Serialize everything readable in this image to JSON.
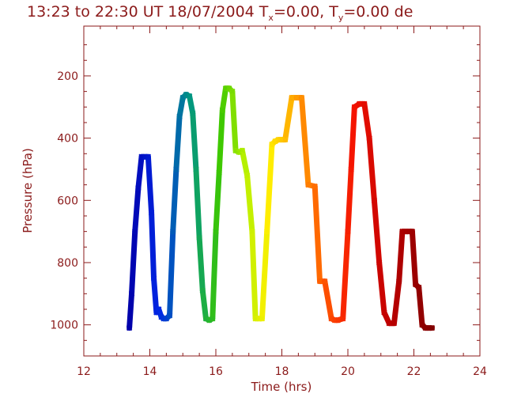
{
  "chart_data": {
    "type": "line",
    "title": "13:23 to 22:30 UT 18/07/2004   T",
    "title_tx_sub": "x",
    "title_mid": "=0.00, T",
    "title_ty_sub": "y",
    "title_end": "=0.00 de",
    "xlabel": "Time  (hrs)",
    "ylabel": "Pressure  (hPa)",
    "xlim": [
      12,
      24
    ],
    "ylim": [
      1100,
      40
    ],
    "y_inverted": true,
    "grid": false,
    "x_ticks": [
      12,
      14,
      16,
      18,
      20,
      22,
      24
    ],
    "x_tick_labels": [
      "12",
      "14",
      "16",
      "18",
      "20",
      "22",
      "24"
    ],
    "y_ticks": [
      200,
      400,
      600,
      800,
      1000
    ],
    "y_tick_labels": [
      "200",
      "400",
      "600",
      "800",
      "1000"
    ],
    "axis_color": "#8b1a1a",
    "colormap": "rainbow (blue → green → yellow → orange → red → dark red) along time",
    "marker": "x",
    "series": [
      {
        "x": [
          13.38,
          13.45,
          13.55,
          13.65,
          13.75,
          13.85,
          13.95,
          14.05,
          14.12,
          14.2,
          14.27,
          14.35,
          14.42,
          14.5,
          14.6,
          14.7,
          14.8,
          14.9,
          15.0,
          15.1,
          15.2,
          15.3,
          15.4,
          15.5,
          15.6,
          15.7,
          15.8,
          15.9,
          16.0,
          16.1,
          16.2,
          16.3,
          16.4,
          16.5,
          16.6,
          16.7,
          16.8,
          16.95,
          17.1,
          17.2,
          17.3,
          17.4,
          17.55,
          17.7,
          17.8,
          17.9,
          18.0,
          18.1,
          18.3,
          18.45,
          18.6,
          18.8,
          19.0,
          19.15,
          19.3,
          19.5,
          19.6,
          19.7,
          19.85,
          20.0,
          20.1,
          20.2,
          20.35,
          20.5,
          20.65,
          20.8,
          20.95,
          21.1,
          21.25,
          21.4,
          21.55,
          21.65,
          21.75,
          21.85,
          21.95,
          22.05,
          22.15,
          22.25,
          22.35,
          22.45,
          22.55
        ],
        "y": [
          1010,
          900,
          700,
          560,
          460,
          460,
          460,
          640,
          850,
          960,
          950,
          975,
          980,
          980,
          970,
          700,
          500,
          330,
          270,
          260,
          265,
          320,
          500,
          720,
          890,
          980,
          985,
          980,
          700,
          510,
          310,
          240,
          240,
          250,
          440,
          445,
          440,
          520,
          700,
          980,
          980,
          980,
          700,
          420,
          410,
          405,
          405,
          405,
          270,
          270,
          270,
          550,
          555,
          860,
          860,
          980,
          985,
          985,
          980,
          700,
          500,
          300,
          290,
          290,
          400,
          600,
          800,
          960,
          995,
          995,
          860,
          700,
          700,
          700,
          700,
          870,
          880,
          1000,
          1010,
          1010,
          1010
        ]
      }
    ]
  }
}
